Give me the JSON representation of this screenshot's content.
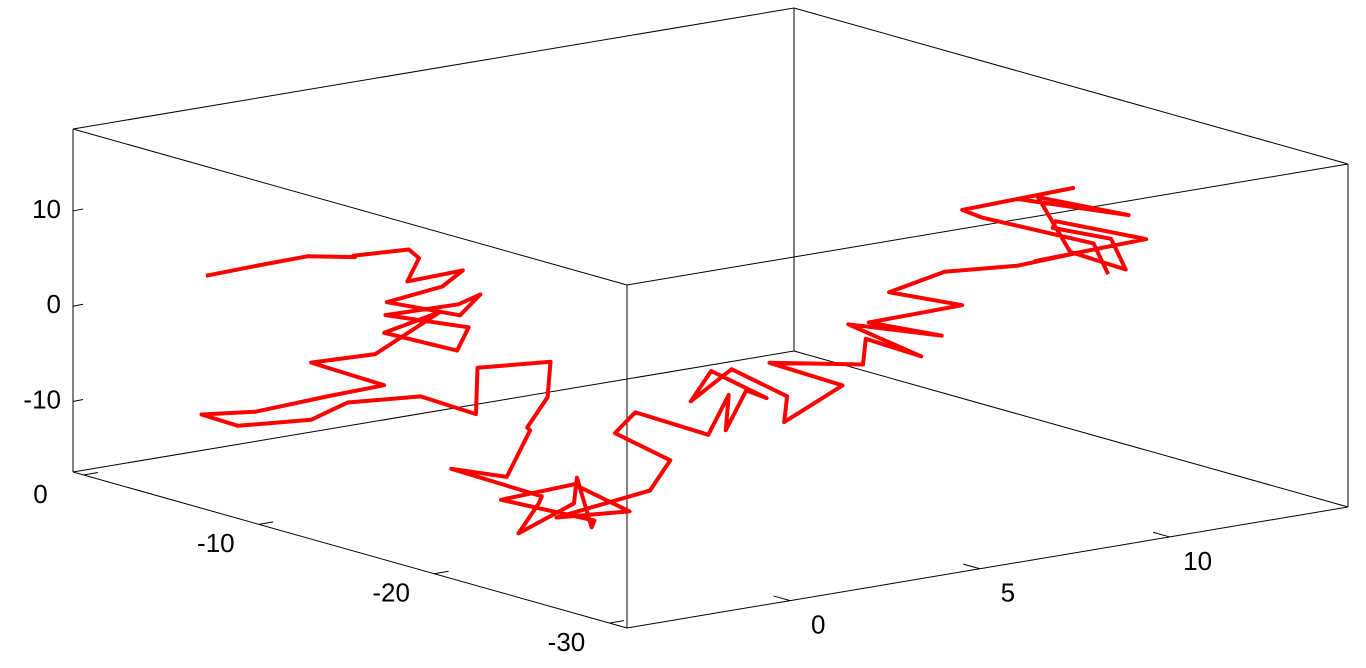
{
  "chart_data": {
    "type": "line3d",
    "color": "#ff0000",
    "xlim": [
      -4.3,
      14.7
    ],
    "xticks": [
      0,
      5,
      10
    ],
    "ylim": [
      -31,
      0.6
    ],
    "yticks": [
      0,
      -10,
      -20,
      -30
    ],
    "zlim": [
      -17.4,
      18.6
    ],
    "zticks": [
      10,
      0,
      -10
    ],
    "series": [
      {
        "x": [
          -2,
          -1.5,
          -1,
          0,
          1,
          0.5,
          1.5,
          2,
          1,
          2,
          1,
          0,
          1,
          2,
          0.5,
          -0.5,
          1,
          0,
          -1,
          0,
          -1,
          -2,
          -1,
          -2,
          -3,
          -3.5,
          -3,
          -2,
          -1.5,
          -0.5,
          0.5,
          1,
          2,
          1,
          0,
          1,
          -1,
          -2,
          -1,
          -2,
          -3,
          -2,
          -1,
          -2,
          -1,
          -3,
          -2,
          -1,
          -2,
          0,
          1,
          0,
          1,
          2,
          3,
          2,
          3,
          4,
          3,
          2,
          4,
          5,
          4,
          6,
          5,
          7,
          8,
          9,
          8,
          10,
          9,
          11,
          10,
          11,
          12,
          13,
          12,
          14,
          13,
          12,
          14,
          13,
          12,
          13,
          14,
          12,
          13,
          11,
          12,
          14,
          13
        ],
        "y": [
          -2,
          -2.5,
          -3,
          -3.5,
          -4,
          -5,
          -6,
          -5.5,
          -7,
          -8,
          -9,
          -8,
          -10,
          -9,
          -11,
          -9,
          -10.5,
          -12,
          -10,
          -11,
          -9.5,
          -8,
          -10,
          -9,
          -7,
          -5,
          -6,
          -8,
          -9,
          -11,
          -12,
          -11,
          -13,
          -15,
          -16,
          -14,
          -17,
          -16,
          -19,
          -21,
          -22,
          -23,
          -21,
          -24,
          -22,
          -21,
          -23,
          -24,
          -22,
          -23,
          -22,
          -21,
          -20,
          -22,
          -21,
          -23,
          -22,
          -21,
          -20,
          -21,
          -19,
          -20,
          -22,
          -21,
          -19,
          -20,
          -18,
          -19,
          -17,
          -18,
          -16,
          -17,
          -15,
          -16,
          -18,
          -20,
          -19,
          -21,
          -18,
          -20,
          -19,
          -22,
          -21,
          -17,
          -20,
          -18,
          -19,
          -17,
          -16,
          -18,
          -21
        ],
        "z": [
          3,
          3.5,
          4,
          4.5,
          4,
          5,
          5.5,
          4,
          3,
          4,
          3.5,
          2,
          1,
          2,
          3,
          1.5,
          0,
          -1,
          0.5,
          2.5,
          -2,
          -3,
          -5,
          -6,
          -8,
          -9,
          -10,
          -9,
          -7,
          -6,
          -8,
          -4,
          -3,
          -5,
          -7,
          -9,
          -11,
          -10,
          -12,
          -11,
          -13,
          -10,
          -9,
          -12,
          -13,
          -10,
          -8,
          -11,
          -12,
          -10,
          -8,
          -5,
          -4,
          -6,
          -3,
          -5,
          -2,
          -4,
          -1,
          -3,
          -2,
          -5,
          -6,
          -4,
          -2,
          -3,
          -2,
          -4,
          -1,
          -3,
          -2,
          -1,
          0,
          2,
          3,
          5,
          4,
          6,
          7,
          8,
          5,
          4,
          6,
          9,
          8,
          10,
          11,
          9,
          7,
          4,
          3
        ]
      }
    ]
  }
}
